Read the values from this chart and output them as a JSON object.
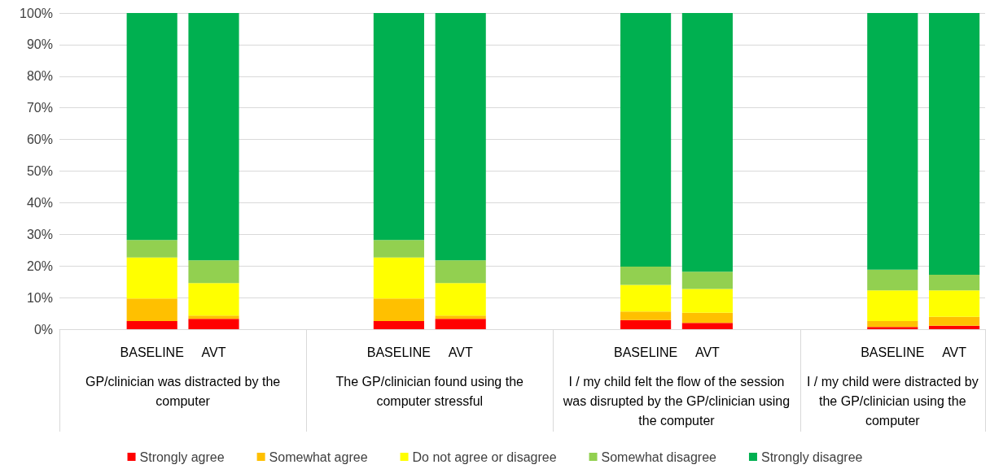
{
  "chart_data": {
    "type": "bar",
    "stacked": true,
    "categories": [
      null,
      "BASELINE",
      "AVT",
      null,
      null,
      "BASELINE",
      "AVT",
      null,
      null,
      "BASELINE",
      "AVT",
      null,
      null,
      "BASELINE",
      "AVT"
    ],
    "series": [
      {
        "name": "Strongly agree",
        "color": "#ff0000",
        "values": [
          null,
          2.6,
          3.3,
          null,
          null,
          2.6,
          3.3,
          null,
          null,
          2.9,
          2.0,
          null,
          null,
          0.7,
          1.1
        ]
      },
      {
        "name": "Somewhat agree",
        "color": "#ffc000",
        "values": [
          null,
          7.1,
          1.0,
          null,
          null,
          7.1,
          1.0,
          null,
          null,
          2.7,
          3.2,
          null,
          null,
          1.9,
          2.8
        ]
      },
      {
        "name": "Do not agree or disagree",
        "color": "#ffff00",
        "values": [
          null,
          13.0,
          10.3,
          null,
          null,
          13.0,
          10.3,
          null,
          null,
          8.4,
          7.5,
          null,
          null,
          9.7,
          8.4
        ]
      },
      {
        "name": "Somewhat disagree",
        "color": "#92d050",
        "values": [
          null,
          5.5,
          7.2,
          null,
          null,
          5.5,
          7.2,
          null,
          null,
          5.8,
          5.5,
          null,
          null,
          6.5,
          4.9
        ]
      },
      {
        "name": "Strongly disagree",
        "color": "#00b050",
        "values": [
          null,
          71.8,
          78.2,
          null,
          null,
          71.8,
          78.2,
          null,
          null,
          80.2,
          81.8,
          null,
          null,
          81.2,
          82.8
        ]
      }
    ],
    "ylim": [
      0,
      100
    ],
    "yticks": [
      {
        "value": 0,
        "label": "0%"
      },
      {
        "value": 10,
        "label": "10%"
      },
      {
        "value": 20,
        "label": "20%"
      },
      {
        "value": 30,
        "label": "30%"
      },
      {
        "value": 40,
        "label": "40%"
      },
      {
        "value": 50,
        "label": "50%"
      },
      {
        "value": 60,
        "label": "60%"
      },
      {
        "value": 70,
        "label": "70%"
      },
      {
        "value": 80,
        "label": "80%"
      },
      {
        "value": 90,
        "label": "90%"
      },
      {
        "value": 100,
        "label": "100%"
      }
    ],
    "grid": "y",
    "legend": "bottom",
    "annotations": [
      "GP/clinician was distracted by the computer",
      "The GP/clinician found using the computer stressful",
      "I / my child felt the flow of the session was disrupted by the GP/clinician using the computer",
      "I / my child were distracted by the GP/clinician using the computer"
    ]
  }
}
